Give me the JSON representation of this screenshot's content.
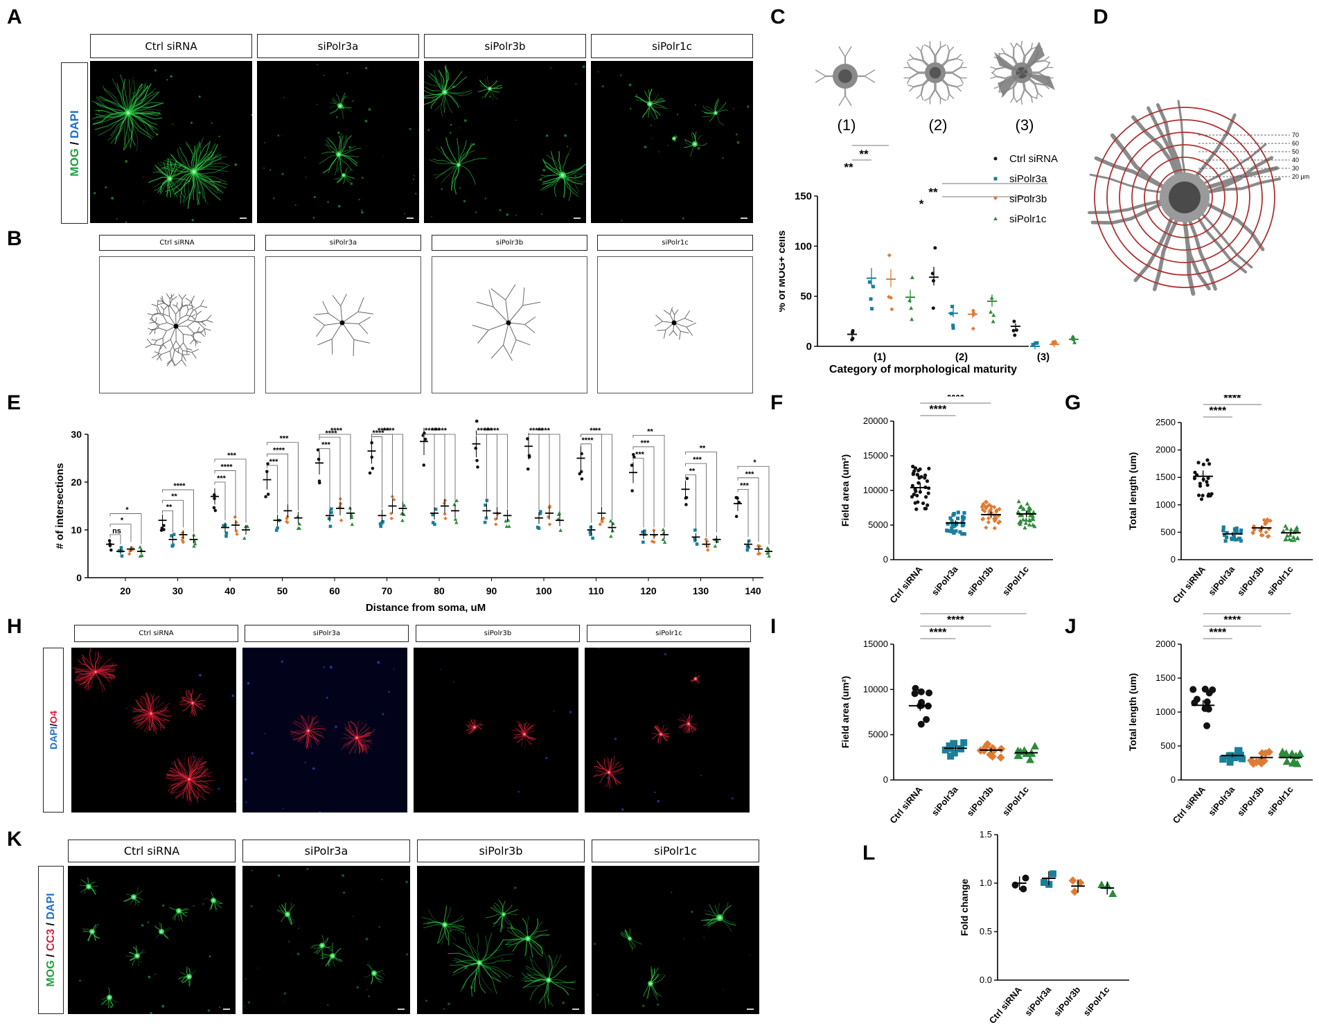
{
  "panel_letters": {
    "A": "A",
    "B": "B",
    "C": "C",
    "D": "D",
    "E": "E",
    "F": "F",
    "G": "G",
    "H": "H",
    "I": "I",
    "J": "J",
    "K": "K",
    "L": "L"
  },
  "conditions": [
    "Ctrl siRNA",
    "siPolr3a",
    "siPolr3b",
    "siPolr1c"
  ],
  "colors": {
    "ctrl": "#111111",
    "polr3a": "#1a7f9a",
    "polr3b": "#e07b34",
    "polr1c": "#2e8b3c",
    "mog_green": "#2fd14a",
    "o4_red": "#d62035",
    "dapi_blue": "#2a45c8",
    "ring_red": "#b03030"
  },
  "stain_labels": {
    "A": [
      {
        "text": "MOG",
        "color": "#20a040"
      },
      {
        "text": " / ",
        "color": "#000000"
      },
      {
        "text": "DAPI",
        "color": "#1e6fd0"
      }
    ],
    "H": [
      {
        "text": "DAPI",
        "color": "#1e6fd0"
      },
      {
        "text": "/",
        "color": "#000000"
      },
      {
        "text": "O4",
        "color": "#d62035"
      }
    ],
    "K": [
      {
        "text": "MOG",
        "color": "#20a040"
      },
      {
        "text": " / ",
        "color": "#000000"
      },
      {
        "text": "CC3",
        "color": "#d62035"
      },
      {
        "text": " / ",
        "color": "#000000"
      },
      {
        "text": "DAPI",
        "color": "#1e6fd0"
      }
    ]
  },
  "panel_C": {
    "category_labels": [
      "(1)",
      "(2)",
      "(3)"
    ],
    "legend": [
      "Ctrl siRNA",
      "siPolr3a",
      "siPolr3b",
      "siPolr1c"
    ],
    "sig": [
      "**",
      "**",
      "**",
      "*"
    ],
    "chart_data": {
      "type": "scatter",
      "ylabel": "% of MOG+ cells",
      "xlabel": "Category of morphological maturity",
      "categories": [
        "(1)",
        "(2)",
        "(3)"
      ],
      "yticks": [
        "0",
        "50",
        "100",
        "150"
      ],
      "ylim": [
        0,
        150
      ],
      "series": [
        {
          "name": "Ctrl siRNA",
          "means": [
            12,
            69,
            20
          ]
        },
        {
          "name": "siPolr3a",
          "means": [
            68,
            33,
            0
          ]
        },
        {
          "name": "siPolr3b",
          "means": [
            67,
            32,
            2
          ]
        },
        {
          "name": "siPolr1c",
          "means": [
            49,
            45,
            7
          ]
        }
      ]
    }
  },
  "panel_D": {
    "ring_labels": [
      "70",
      "60",
      "50",
      "40",
      "30",
      "20 µm"
    ]
  },
  "panel_E": {
    "chart_data": {
      "type": "scatter",
      "ylabel": "# of intersections",
      "xlabel": "Distance from soma, uM",
      "categories": [
        "20",
        "30",
        "40",
        "50",
        "60",
        "70",
        "80",
        "90",
        "100",
        "110",
        "120",
        "130",
        "140"
      ],
      "yticks": [
        "0",
        "10",
        "20",
        "30"
      ],
      "ylim": [
        0,
        30
      ],
      "series": [
        {
          "name": "Ctrl siRNA",
          "means": [
            7,
            12,
            17,
            20.5,
            24,
            26.5,
            28.5,
            28,
            27.5,
            25,
            22,
            18.5,
            15.5
          ]
        },
        {
          "name": "siPolr3a",
          "means": [
            5.5,
            8,
            10.5,
            12,
            13,
            13,
            13.5,
            14,
            12.5,
            10,
            9,
            8.5,
            7
          ]
        },
        {
          "name": "siPolr3b",
          "means": [
            6,
            9,
            11,
            14,
            14.5,
            15,
            15,
            13.5,
            13.5,
            13.5,
            9,
            7,
            6
          ]
        },
        {
          "name": "siPolr1c",
          "means": [
            5.5,
            8,
            10,
            12.5,
            13.5,
            14.5,
            14,
            13,
            12,
            10.5,
            9,
            8,
            5.5
          ]
        }
      ],
      "significance": [
        [
          "ns",
          "*",
          "*"
        ],
        [
          "**",
          "**",
          "****"
        ],
        [
          "***",
          "****",
          "***"
        ],
        [
          "***",
          "****",
          "***"
        ],
        [
          "***",
          "****",
          "****"
        ],
        [
          "****",
          "****",
          "****"
        ],
        [
          "****",
          "***",
          "****"
        ],
        [
          "****",
          "***",
          "****"
        ],
        [
          "****",
          "**",
          "***"
        ],
        [
          "****",
          "**",
          "**"
        ],
        [
          "***",
          "***",
          "**"
        ],
        [
          "**",
          "***",
          "**"
        ],
        [
          "***",
          "***",
          "*"
        ]
      ]
    }
  },
  "panel_F": {
    "sig": [
      "****",
      "****",
      "****"
    ],
    "chart_data": {
      "type": "scatter",
      "ylabel": "Field area (um²)",
      "categories": [
        "Ctrl siRNA",
        "siPolr3a",
        "siPolr3b",
        "siPolr1c"
      ],
      "yticks": [
        "0",
        "5000",
        "10000",
        "15000",
        "20000"
      ],
      "ylim": [
        0,
        20000
      ],
      "means": [
        10400,
        5300,
        6500,
        6600
      ]
    }
  },
  "panel_G": {
    "sig": [
      "****",
      "****",
      "****"
    ],
    "chart_data": {
      "type": "scatter",
      "ylabel": "Total length (um)",
      "categories": [
        "Ctrl siRNA",
        "siPolr3a",
        "siPolr3b",
        "siPolr1c"
      ],
      "yticks": [
        "0",
        "500",
        "1000",
        "1500",
        "2000",
        "2500"
      ],
      "ylim": [
        0,
        2500
      ],
      "means": [
        1520,
        470,
        580,
        490
      ]
    }
  },
  "panel_I": {
    "sig": [
      "****",
      "****",
      "****"
    ],
    "chart_data": {
      "type": "scatter",
      "ylabel": "Field area (um²)",
      "categories": [
        "Ctrl siRNA",
        "siPolr3a",
        "siPolr3b",
        "siPolr1c"
      ],
      "yticks": [
        "0",
        "5000",
        "10000",
        "15000"
      ],
      "ylim": [
        0,
        15000
      ],
      "means": [
        8200,
        3500,
        3300,
        3000
      ]
    }
  },
  "panel_J": {
    "sig": [
      "****",
      "****",
      "****"
    ],
    "chart_data": {
      "type": "scatter",
      "ylabel": "Total length (um)",
      "categories": [
        "Ctrl siRNA",
        "siPolr3a",
        "siPolr3b",
        "siPolr1c"
      ],
      "yticks": [
        "0",
        "500",
        "1000",
        "1500",
        "2000"
      ],
      "ylim": [
        0,
        2000
      ],
      "means": [
        1100,
        360,
        330,
        330
      ]
    }
  },
  "panel_L": {
    "chart_data": {
      "type": "scatter",
      "ylabel": "Fold change",
      "categories": [
        "Ctrl siRNA",
        "siPolr3a",
        "siPolr3b",
        "siPolr1c"
      ],
      "yticks": [
        "0.0",
        "0.5",
        "1.0",
        "1.5"
      ],
      "ylim": [
        0,
        1.5
      ],
      "means": [
        1.0,
        1.05,
        0.97,
        0.95
      ]
    }
  }
}
